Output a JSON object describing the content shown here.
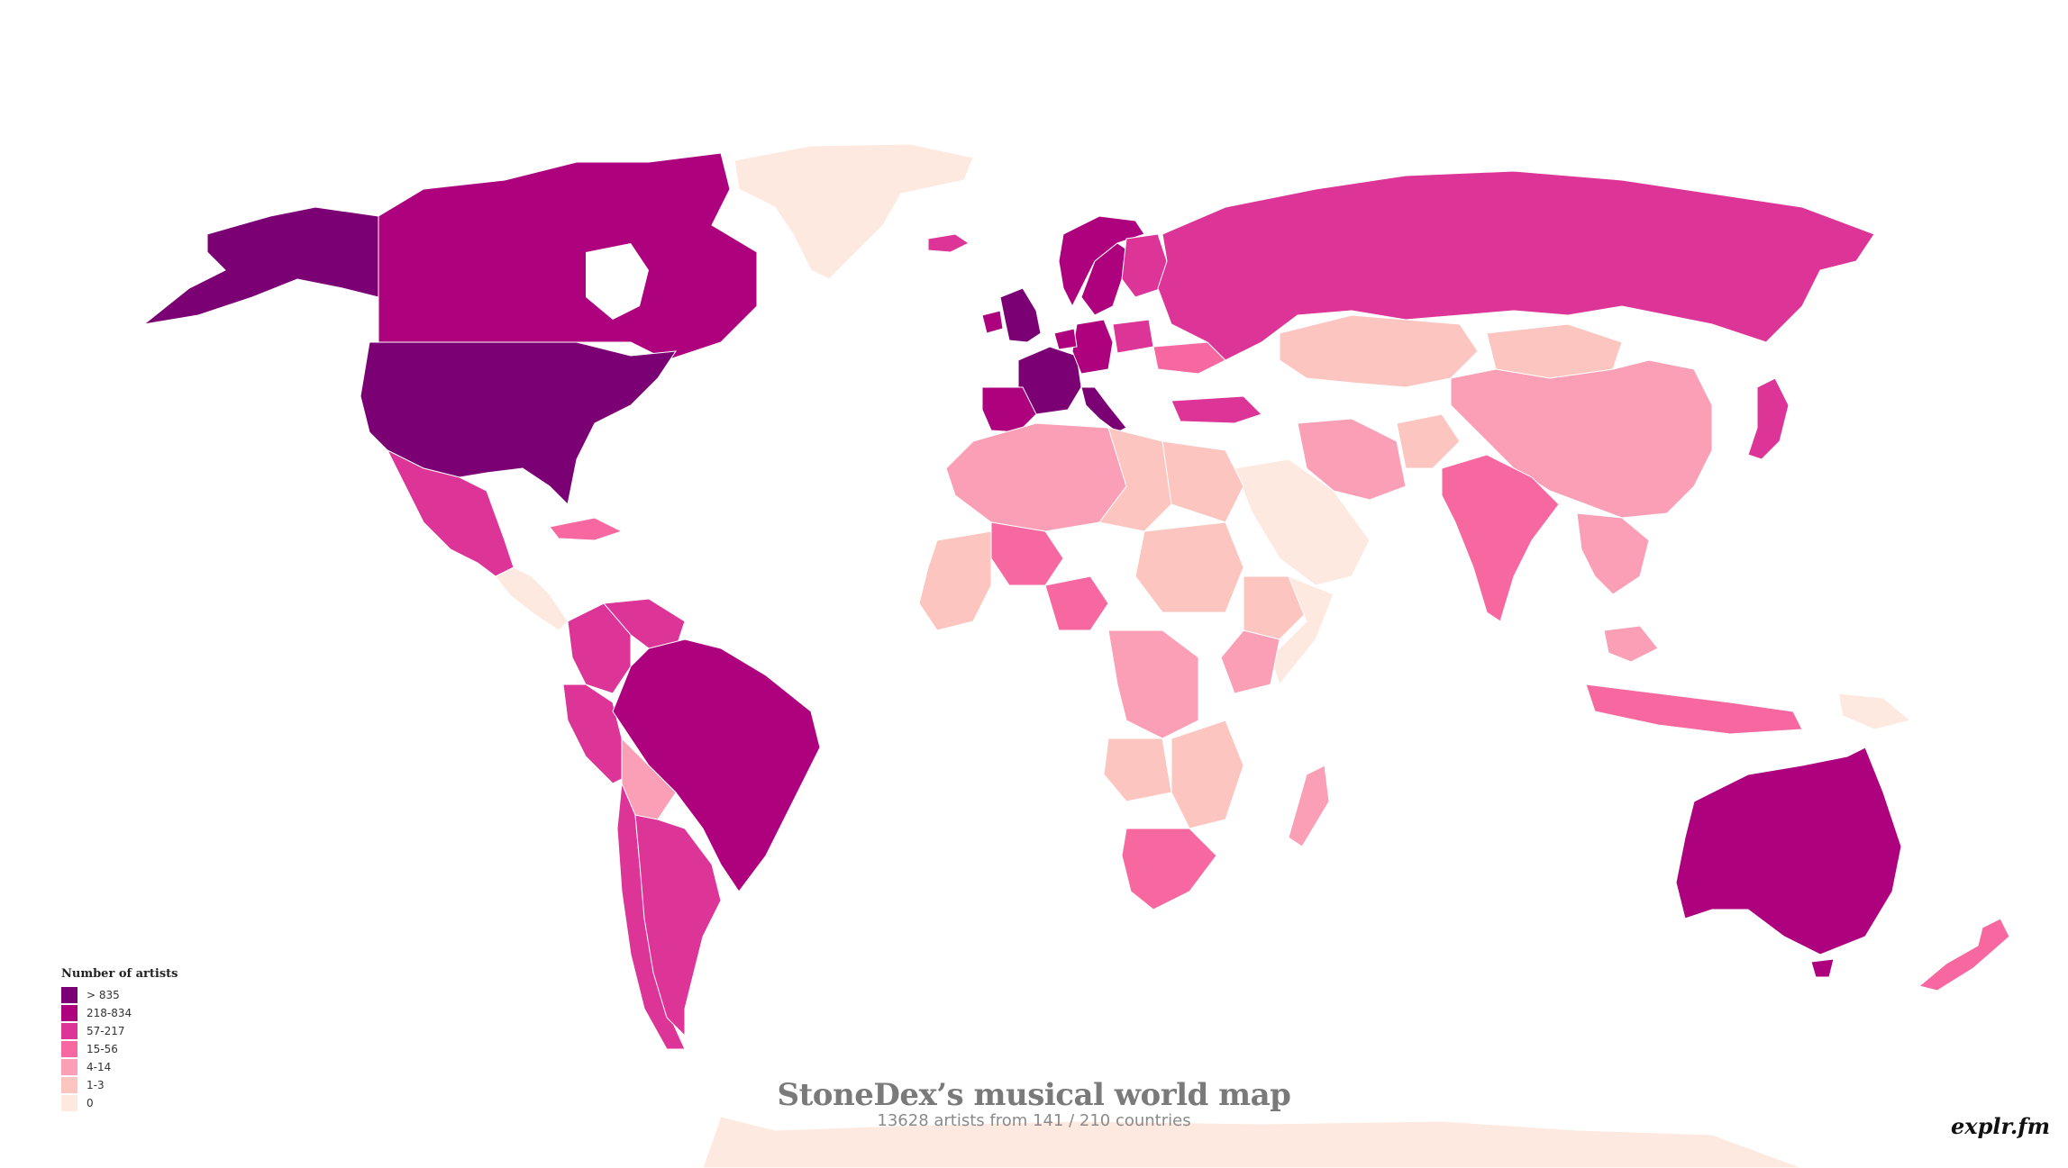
{
  "title": "StoneDex’s musical world map",
  "subtitle": "13628 artists from 141 / 210 countries",
  "logo_text": "explr.fm",
  "legend": {
    "title": "Number of artists",
    "bins": [
      {
        "label": "> 835",
        "color": "#7b0074"
      },
      {
        "label": "218-834",
        "color": "#ae017e"
      },
      {
        "label": "57-217",
        "color": "#dd3497"
      },
      {
        "label": "15-56",
        "color": "#f768a1"
      },
      {
        "label": "4-14",
        "color": "#fa9fb5"
      },
      {
        "label": "1-3",
        "color": "#fcc5c0"
      },
      {
        "label": "0",
        "color": "#fde9e0"
      }
    ]
  },
  "regions": [
    {
      "name": "United States",
      "bin": 0
    },
    {
      "name": "Alaska",
      "bin": 0
    },
    {
      "name": "United Kingdom",
      "bin": 0
    },
    {
      "name": "France",
      "bin": 0
    },
    {
      "name": "Italy",
      "bin": 0
    },
    {
      "name": "Canada",
      "bin": 1
    },
    {
      "name": "Brazil",
      "bin": 1
    },
    {
      "name": "Australia",
      "bin": 1
    },
    {
      "name": "Germany",
      "bin": 1
    },
    {
      "name": "Spain",
      "bin": 1
    },
    {
      "name": "Sweden",
      "bin": 1
    },
    {
      "name": "Norway",
      "bin": 1
    },
    {
      "name": "Netherlands",
      "bin": 1
    },
    {
      "name": "Russia",
      "bin": 2
    },
    {
      "name": "Mexico",
      "bin": 2
    },
    {
      "name": "Japan",
      "bin": 2
    },
    {
      "name": "Argentina",
      "bin": 2
    },
    {
      "name": "Finland",
      "bin": 2
    },
    {
      "name": "Poland",
      "bin": 2
    },
    {
      "name": "Colombia",
      "bin": 2
    },
    {
      "name": "Venezuela",
      "bin": 2
    },
    {
      "name": "Peru",
      "bin": 2
    },
    {
      "name": "Chile",
      "bin": 2
    },
    {
      "name": "Turkey",
      "bin": 2
    },
    {
      "name": "India",
      "bin": 3
    },
    {
      "name": "South Africa",
      "bin": 3
    },
    {
      "name": "New Zealand",
      "bin": 3
    },
    {
      "name": "Mali",
      "bin": 3
    },
    {
      "name": "Nigeria",
      "bin": 3
    },
    {
      "name": "Ukraine",
      "bin": 3
    },
    {
      "name": "Jamaica",
      "bin": 3
    },
    {
      "name": "Indonesia",
      "bin": 3
    },
    {
      "name": "China",
      "bin": 4
    },
    {
      "name": "Algeria",
      "bin": 4
    },
    {
      "name": "Bolivia",
      "bin": 4
    },
    {
      "name": "Madagascar",
      "bin": 4
    },
    {
      "name": "Iran",
      "bin": 4
    },
    {
      "name": "Kenya",
      "bin": 4
    },
    {
      "name": "Thailand",
      "bin": 4
    },
    {
      "name": "Malaysia",
      "bin": 4
    },
    {
      "name": "Congo (DRC)",
      "bin": 4
    },
    {
      "name": "Mongolia",
      "bin": 5
    },
    {
      "name": "Kazakhstan",
      "bin": 5
    },
    {
      "name": "Libya",
      "bin": 5
    },
    {
      "name": "Egypt",
      "bin": 5
    },
    {
      "name": "Sudan",
      "bin": 5
    },
    {
      "name": "Angola",
      "bin": 5
    },
    {
      "name": "Ethiopia",
      "bin": 5
    },
    {
      "name": "Afghanistan",
      "bin": 5
    },
    {
      "name": "Greenland",
      "bin": 6
    },
    {
      "name": "Saudi Arabia",
      "bin": 6
    },
    {
      "name": "Antarctica",
      "bin": 6
    },
    {
      "name": "Central America",
      "bin": 6
    },
    {
      "name": "Somalia",
      "bin": 6
    },
    {
      "name": "Papua New Guinea",
      "bin": 6
    }
  ]
}
